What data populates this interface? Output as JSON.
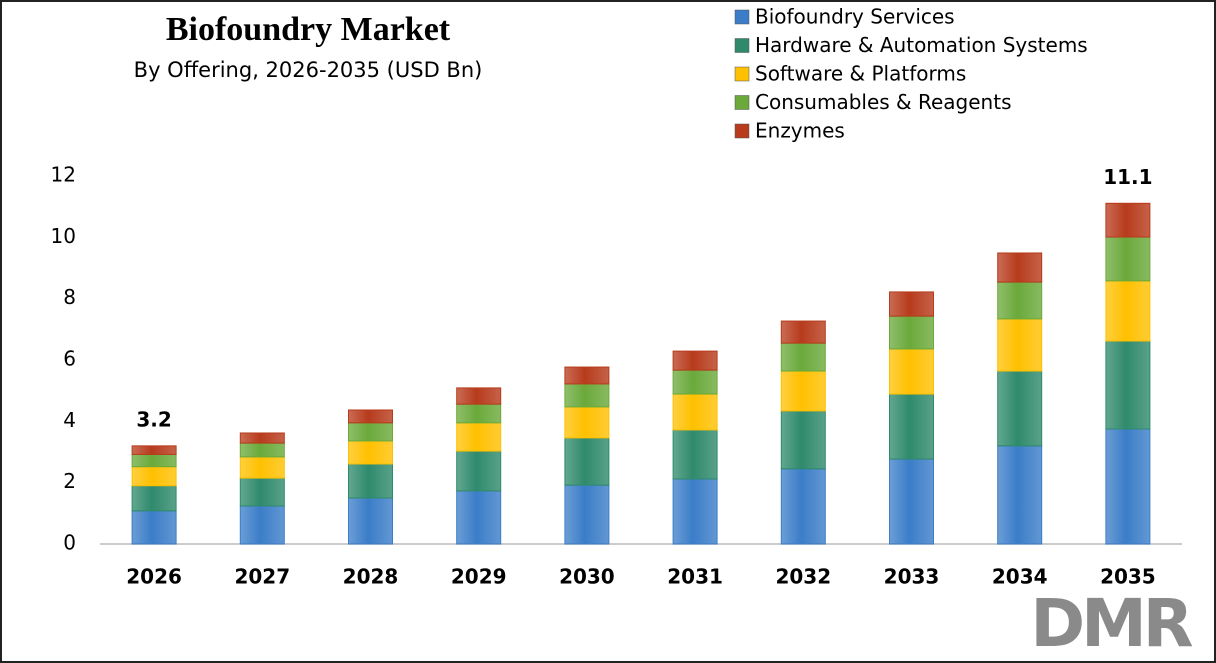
{
  "chart_data": {
    "type": "stacked_bar",
    "title": "Biofoundry Market",
    "subtitle": "By Offering, 2026-2035 (USD Bn)",
    "categories": [
      "2026",
      "2027",
      "2028",
      "2029",
      "2030",
      "2031",
      "2032",
      "2033",
      "2034",
      "2035"
    ],
    "series": [
      {
        "name": "Biofoundry Services",
        "color": "#3b7dc8",
        "values": [
          1.08,
          1.24,
          1.5,
          1.73,
          1.92,
          2.12,
          2.45,
          2.77,
          3.2,
          3.75
        ]
      },
      {
        "name": "Hardware & Automation Systems",
        "color": "#2f8a6c",
        "values": [
          0.82,
          0.91,
          1.11,
          1.3,
          1.54,
          1.6,
          1.89,
          2.12,
          2.44,
          2.87
        ]
      },
      {
        "name": "Software & Platforms",
        "color": "#ffc000",
        "values": [
          0.62,
          0.69,
          0.75,
          0.92,
          1.01,
          1.17,
          1.3,
          1.47,
          1.7,
          1.96
        ]
      },
      {
        "name": "Consumables & Reagents",
        "color": "#6aa93a",
        "values": [
          0.4,
          0.45,
          0.59,
          0.61,
          0.75,
          0.78,
          0.91,
          1.07,
          1.2,
          1.43
        ]
      },
      {
        "name": "Enzymes",
        "color": "#b73b1c",
        "values": [
          0.28,
          0.33,
          0.42,
          0.53,
          0.55,
          0.62,
          0.72,
          0.79,
          0.95,
          1.1
        ]
      }
    ],
    "annotations": [
      {
        "category": "2026",
        "text": "3.2"
      },
      {
        "category": "2035",
        "text": "11.1"
      }
    ],
    "ylim": [
      0,
      12
    ],
    "yticks": [
      0,
      2,
      4,
      6,
      8,
      10,
      12
    ],
    "grid": false,
    "legend": "top-right",
    "logo": "DMR"
  }
}
